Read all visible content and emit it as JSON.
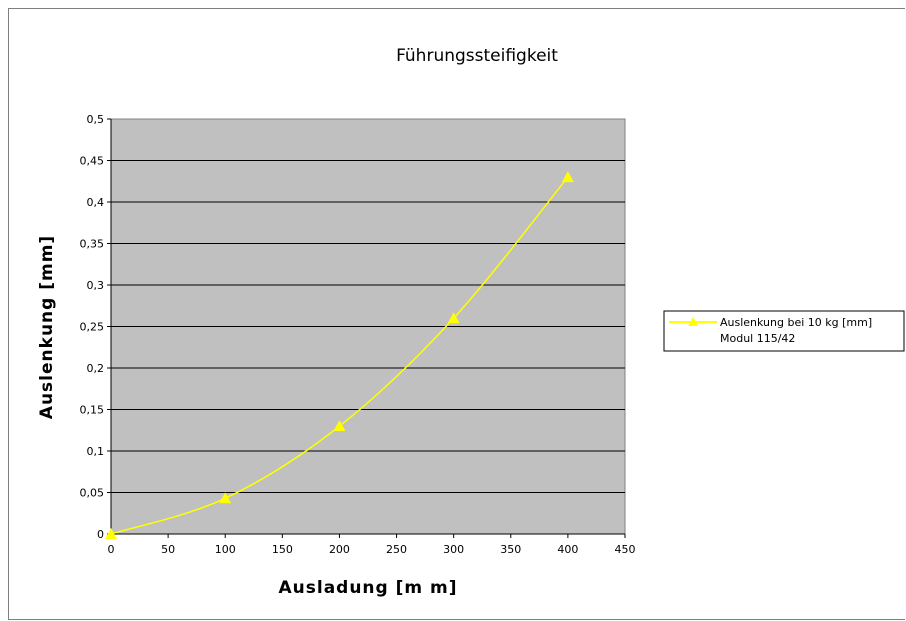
{
  "chart_data": {
    "type": "line",
    "title": "Führungssteifigkeit",
    "xlabel": "Ausladung [m m]",
    "ylabel": "Auslenkung [mm]",
    "xlim": [
      0,
      450
    ],
    "ylim": [
      0,
      0.5
    ],
    "x_ticks": [
      "0",
      "50",
      "100",
      "150",
      "200",
      "250",
      "300",
      "350",
      "400",
      "450"
    ],
    "y_ticks": [
      "0",
      "0,05",
      "0,1",
      "0,15",
      "0,2",
      "0,25",
      "0,3",
      "0,35",
      "0,4",
      "0,45",
      "0,5"
    ],
    "grid": "horizontal",
    "plot_background": "#c0c0c0",
    "legend_position": "right",
    "series": [
      {
        "name": "Auslenkung bei 10 kg [mm]",
        "name_line2": "Modul 115/42",
        "color": "#ffff00",
        "marker": "triangle",
        "x": [
          0,
          100,
          200,
          300,
          400
        ],
        "y": [
          0,
          0.043,
          0.13,
          0.26,
          0.43
        ]
      }
    ]
  }
}
